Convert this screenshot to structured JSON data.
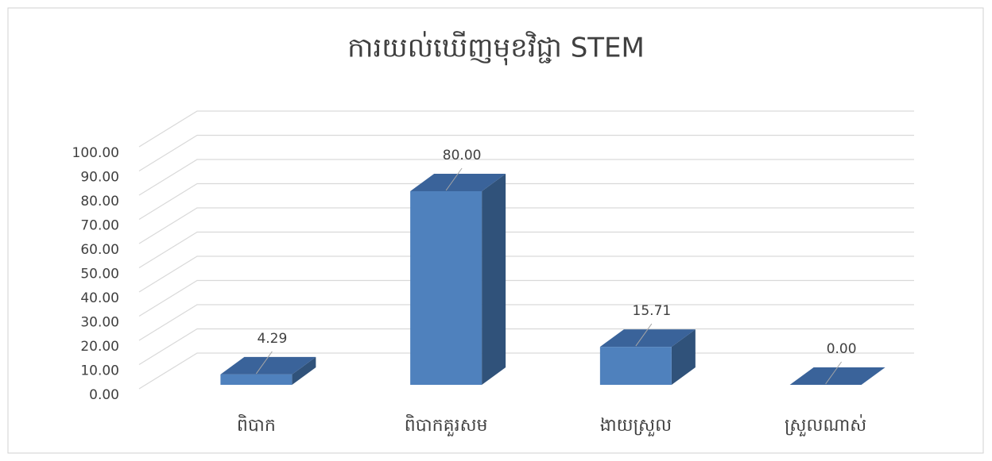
{
  "chart_data": {
    "type": "bar3d",
    "title": "ការយល់ឃើញមុខវិជ្ជា STEM",
    "categories": [
      "ពិបាក",
      "ពិបាកគួរសម",
      "ងាយស្រួល",
      "ស្រួលណាស់"
    ],
    "values": [
      4.29,
      80,
      15.71,
      0
    ],
    "value_labels": [
      "4.29",
      "80.00",
      "15.71",
      "0.00"
    ],
    "color": "#4f81bd",
    "ylim": [
      0,
      100
    ],
    "yticks": [
      {
        "value": 0,
        "label": "0.00"
      },
      {
        "value": 10,
        "label": "10.00"
      },
      {
        "value": 20,
        "label": "20.00"
      },
      {
        "value": 30,
        "label": "30.00"
      },
      {
        "value": 40,
        "label": "40.00"
      },
      {
        "value": 50,
        "label": "50.00"
      },
      {
        "value": 60,
        "label": "60.00"
      },
      {
        "value": 70,
        "label": "70.00"
      },
      {
        "value": 80,
        "label": "80.00"
      },
      {
        "value": 90,
        "label": "90.00"
      },
      {
        "value": 100,
        "label": "100.00"
      }
    ],
    "grid": true
  }
}
